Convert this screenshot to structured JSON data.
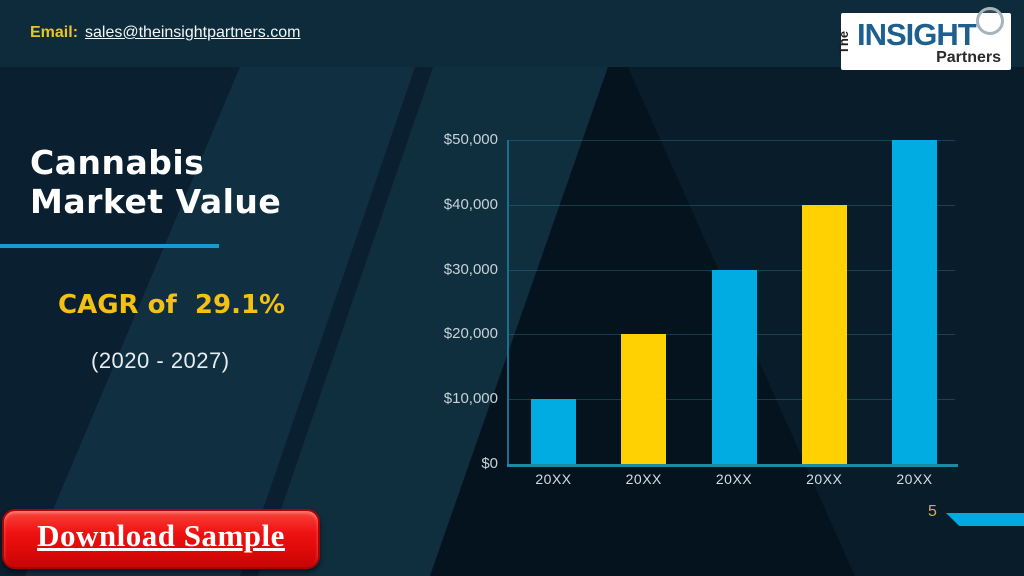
{
  "header": {
    "email_label": "Email:",
    "email_address": "sales@theinsightpartners.com"
  },
  "logo": {
    "the": "The",
    "insight": "INSIGHT",
    "partners": "Partners"
  },
  "slide": {
    "title_line1": "Cannabis",
    "title_line2": "Market Value",
    "cagr": "CAGR of  29.1%",
    "period": "(2020 - 2027)",
    "download_label": "Download Sample",
    "page_number": "5"
  },
  "colors": {
    "bar_blue": "#00ace1",
    "bar_yellow": "#ffd103",
    "accent_cyan": "#189bd0",
    "strip_cyan": "#00a9e0",
    "cagr_gold": "#f3c013",
    "email_gold": "#e9c22c",
    "button_red": "#ee1111",
    "background_navy": "#0a1f30"
  },
  "chart_data": {
    "type": "bar",
    "title": "Cannabis Market Value",
    "categories": [
      "20XX",
      "20XX",
      "20XX",
      "20XX",
      "20XX"
    ],
    "values": [
      10000,
      20000,
      30000,
      40000,
      50000
    ],
    "bar_colors": [
      "#00ace1",
      "#ffd103",
      "#00ace1",
      "#ffd103",
      "#00ace1"
    ],
    "y_ticks": [
      "$0",
      "$10,000",
      "$20,000",
      "$30,000",
      "$40,000",
      "$50,000"
    ],
    "y_tick_values": [
      0,
      10000,
      20000,
      30000,
      40000,
      50000
    ],
    "ylim": [
      0,
      50000
    ],
    "xlabel": "",
    "ylabel": "",
    "grid": true,
    "legend": false
  }
}
